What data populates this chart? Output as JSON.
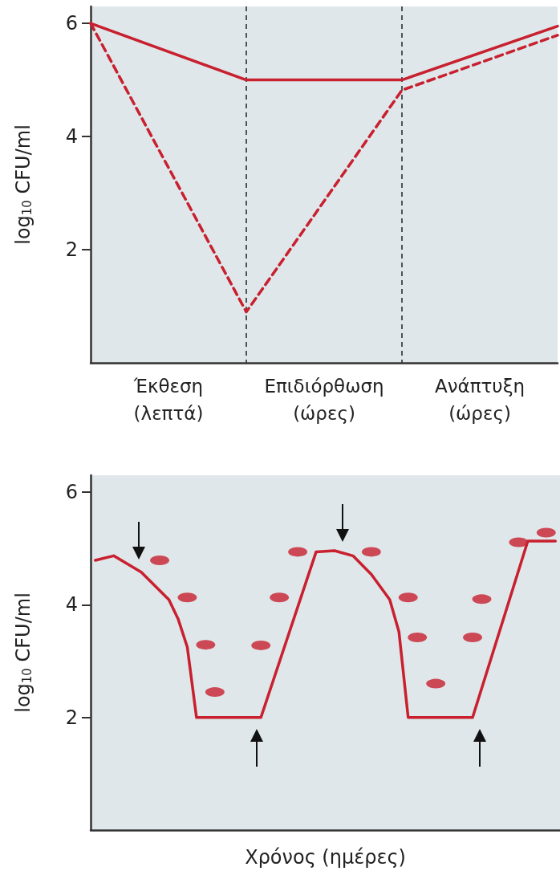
{
  "chart_data": [
    {
      "type": "line",
      "ylabel": "log$_{10}$ CFU/ml",
      "ylim": [
        0,
        6.3
      ],
      "yticks": [
        2,
        4,
        6
      ],
      "categories": [
        null,
        "Έκθεση\n(λεπτά)",
        null,
        "Επιδιόρθωση\n(ώρες)",
        null,
        "Ανάπτυξη\n(ώρες)",
        null
      ],
      "grid": "x",
      "series": [
        {
          "color": "#c8202f",
          "line_style": "solid",
          "marker": "none",
          "values": [
            6,
            null,
            5,
            null,
            5,
            null,
            5.95
          ]
        },
        {
          "color": "#c8202f",
          "line_style": "dashed",
          "marker": "none",
          "values": [
            6,
            null,
            0.9,
            null,
            4.82,
            null,
            5.79
          ]
        }
      ]
    },
    {
      "type": "line",
      "ylabel": "log$_{10}$ CFU/ml",
      "xlabel": "Χρόνος (ημέρες)",
      "ylim": [
        0,
        6.3
      ],
      "yticks": [
        2,
        4,
        6
      ],
      "tick_labels": "y",
      "grid": false,
      "categories": [
        null,
        null,
        null,
        null,
        null,
        null,
        null,
        null,
        null,
        null,
        null,
        null,
        null,
        null,
        null,
        null,
        null,
        null,
        null,
        null,
        null,
        null,
        null,
        null,
        null,
        null,
        null,
        null,
        null,
        null,
        null,
        null,
        null,
        null,
        null,
        null,
        null,
        null,
        null,
        null,
        null,
        null,
        null,
        null,
        null,
        null,
        null,
        null,
        null,
        null,
        null
      ],
      "series": [
        {
          "type": "line",
          "color": "#c8202f",
          "line_style": "solid",
          "marker": "none",
          "values": [
            4.79,
            null,
            4.87,
            null,
            null,
            4.58,
            null,
            null,
            4.09,
            3.75,
            3.25,
            2.0,
            null,
            null,
            null,
            null,
            null,
            null,
            2.0,
            null,
            null,
            null,
            null,
            null,
            4.94,
            null,
            4.96,
            null,
            4.87,
            null,
            4.54,
            null,
            4.09,
            3.52,
            2.0,
            null,
            null,
            null,
            null,
            null,
            null,
            2.0,
            null,
            null,
            null,
            null,
            null,
            5.13,
            null,
            null,
            5.13
          ]
        },
        {
          "type": "scatter",
          "color": "#c8202f",
          "marker": "circle",
          "values": [
            null,
            null,
            null,
            null,
            null,
            null,
            null,
            4.79,
            null,
            null,
            4.13,
            null,
            3.29,
            2.45,
            null,
            null,
            null,
            null,
            3.28,
            null,
            4.13,
            null,
            4.94,
            null,
            null,
            null,
            null,
            null,
            null,
            null,
            4.94,
            null,
            null,
            null,
            4.13,
            3.42,
            null,
            2.6,
            null,
            null,
            null,
            3.42,
            4.1,
            null,
            null,
            null,
            5.11,
            null,
            null,
            5.28,
            null
          ]
        }
      ]
    }
  ]
}
